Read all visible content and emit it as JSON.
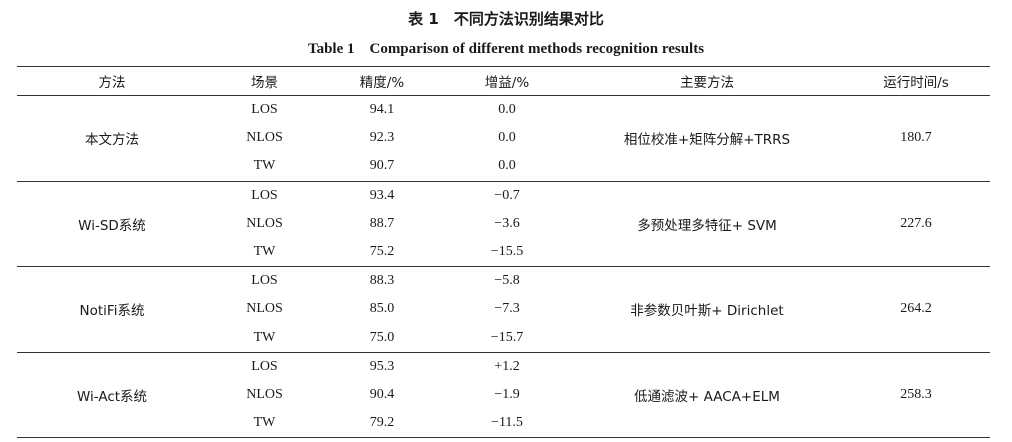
{
  "caption": {
    "cn": "表 1　不同方法识别结果对比",
    "en": "Table 1　Comparison of different methods recognition results"
  },
  "table": {
    "headers": [
      "方法",
      "场景",
      "精度/%",
      "增益/%",
      "主要方法",
      "运行时间/s"
    ],
    "groups": [
      {
        "method": "本文方法",
        "main_method": "相位校准+矩阵分解+TRRS",
        "runtime": "180.7",
        "rows": [
          {
            "scene": "LOS",
            "accuracy": "94.1",
            "gain": "0.0"
          },
          {
            "scene": "NLOS",
            "accuracy": "92.3",
            "gain": "0.0"
          },
          {
            "scene": "TW",
            "accuracy": "90.7",
            "gain": "0.0"
          }
        ]
      },
      {
        "method": "Wi-SD系统",
        "main_method": "多预处理多特征+ SVM",
        "runtime": "227.6",
        "rows": [
          {
            "scene": "LOS",
            "accuracy": "93.4",
            "gain": "−0.7"
          },
          {
            "scene": "NLOS",
            "accuracy": "88.7",
            "gain": "−3.6"
          },
          {
            "scene": "TW",
            "accuracy": "75.2",
            "gain": "−15.5"
          }
        ]
      },
      {
        "method": "NotiFi系统",
        "main_method": "非参数贝叶斯+ Dirichlet",
        "runtime": "264.2",
        "rows": [
          {
            "scene": "LOS",
            "accuracy": "88.3",
            "gain": "−5.8"
          },
          {
            "scene": "NLOS",
            "accuracy": "85.0",
            "gain": "−7.3"
          },
          {
            "scene": "TW",
            "accuracy": "75.0",
            "gain": "−15.7"
          }
        ]
      },
      {
        "method": "Wi-Act系统",
        "main_method": "低通滤波+ AACA+ELM",
        "runtime": "258.3",
        "rows": [
          {
            "scene": "LOS",
            "accuracy": "95.3",
            "gain": "+1.2"
          },
          {
            "scene": "NLOS",
            "accuracy": "90.4",
            "gain": "−1.9"
          },
          {
            "scene": "TW",
            "accuracy": "79.2",
            "gain": "−11.5"
          }
        ]
      }
    ]
  }
}
